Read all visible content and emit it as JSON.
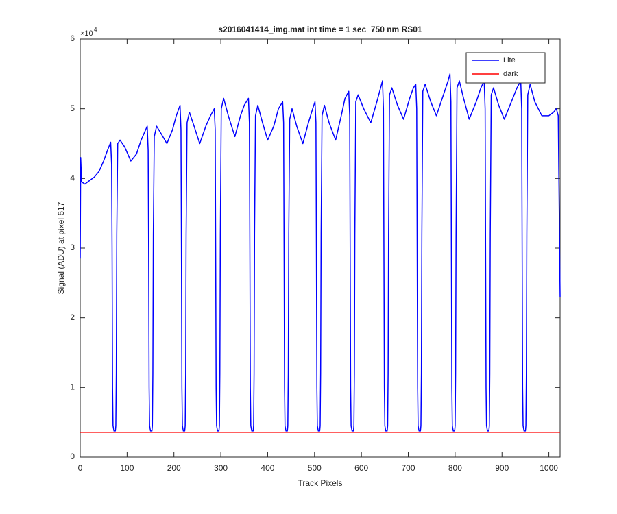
{
  "chart_data": {
    "type": "line",
    "title": "s2016041414_img.mat int time = 1 sec  750 nm RS01",
    "x_label": "Track Pixels",
    "y_label": "Signal (ADU) at pixel 617",
    "y_multiplier": "×10",
    "y_multiplier_exponent": "4",
    "xlim": [
      0,
      1024
    ],
    "xticks": [
      0,
      100,
      200,
      300,
      400,
      500,
      600,
      700,
      800,
      900,
      1000
    ],
    "ylim": [
      0,
      6
    ],
    "yticks": [
      0,
      1,
      2,
      3,
      4,
      5,
      6
    ],
    "grid": false,
    "legend": "northeast",
    "series": [
      {
        "name": "Lite",
        "color": "#0000ff",
        "x": [
          0,
          1,
          3,
          10,
          20,
          30,
          40,
          50,
          58,
          65,
          67,
          68,
          69,
          70,
          72,
          75,
          76,
          77,
          78,
          80,
          85,
          95,
          108,
          120,
          130,
          143,
          145,
          146,
          147,
          148,
          150,
          153,
          154,
          155,
          156,
          158,
          163,
          172,
          185,
          197,
          205,
          213,
          215,
          216,
          217,
          218,
          220,
          223,
          224,
          225,
          226,
          228,
          233,
          243,
          255,
          268,
          278,
          286,
          288,
          289,
          290,
          291,
          293,
          296,
          297,
          298,
          299,
          301,
          306,
          316,
          330,
          342,
          350,
          359,
          361,
          362,
          363,
          364,
          366,
          369,
          370,
          371,
          372,
          374,
          379,
          389,
          400,
          413,
          423,
          432,
          434,
          435,
          436,
          437,
          439,
          442,
          443,
          444,
          445,
          447,
          452,
          462,
          475,
          487,
          496,
          501,
          503,
          504,
          505,
          506,
          508,
          511,
          512,
          513,
          514,
          516,
          521,
          531,
          545,
          557,
          565,
          573,
          575,
          576,
          577,
          578,
          580,
          583,
          584,
          585,
          586,
          588,
          593,
          605,
          620,
          633,
          641,
          645,
          647,
          648,
          649,
          650,
          652,
          655,
          656,
          657,
          658,
          660,
          665,
          677,
          690,
          703,
          711,
          716,
          718,
          719,
          720,
          721,
          723,
          726,
          727,
          728,
          729,
          731,
          736,
          748,
          760,
          775,
          785,
          789,
          791,
          792,
          793,
          794,
          796,
          799,
          800,
          801,
          802,
          804,
          809,
          818,
          830,
          845,
          855,
          862,
          864,
          865,
          866,
          867,
          869,
          872,
          873,
          874,
          875,
          877,
          882,
          893,
          905,
          920,
          932,
          940,
          942,
          943,
          944,
          945,
          947,
          950,
          951,
          952,
          953,
          955,
          960,
          970,
          985,
          1000,
          1010,
          1016,
          1020,
          1024
        ],
        "values": [
          2.85,
          4.3,
          3.95,
          3.92,
          3.97,
          4.02,
          4.1,
          4.25,
          4.4,
          4.52,
          4.2,
          3.0,
          1.0,
          0.45,
          0.375,
          0.375,
          0.45,
          1.2,
          3.2,
          4.5,
          4.55,
          4.45,
          4.25,
          4.35,
          4.55,
          4.75,
          4.4,
          3.0,
          1.0,
          0.45,
          0.375,
          0.375,
          0.45,
          1.2,
          3.2,
          4.6,
          4.75,
          4.65,
          4.5,
          4.7,
          4.9,
          5.05,
          4.7,
          3.0,
          1.0,
          0.45,
          0.375,
          0.375,
          0.45,
          1.2,
          3.2,
          4.8,
          4.95,
          4.75,
          4.5,
          4.75,
          4.9,
          5.0,
          4.7,
          3.0,
          1.0,
          0.45,
          0.375,
          0.375,
          0.45,
          1.2,
          3.2,
          5.0,
          5.15,
          4.9,
          4.6,
          4.9,
          5.05,
          5.15,
          4.8,
          3.0,
          1.0,
          0.45,
          0.375,
          0.375,
          0.45,
          1.2,
          3.2,
          4.9,
          5.05,
          4.8,
          4.55,
          4.75,
          5.0,
          5.1,
          4.8,
          3.0,
          1.0,
          0.45,
          0.375,
          0.375,
          0.45,
          1.2,
          3.2,
          4.85,
          5.0,
          4.75,
          4.5,
          4.8,
          5.0,
          5.1,
          4.8,
          3.0,
          1.0,
          0.45,
          0.375,
          0.375,
          0.45,
          1.2,
          3.2,
          4.9,
          5.05,
          4.8,
          4.55,
          4.9,
          5.15,
          5.25,
          4.9,
          3.0,
          1.0,
          0.45,
          0.375,
          0.375,
          0.45,
          1.2,
          3.2,
          5.1,
          5.2,
          5.0,
          4.8,
          5.1,
          5.3,
          5.4,
          5.0,
          3.0,
          1.0,
          0.45,
          0.375,
          0.375,
          0.45,
          1.2,
          3.2,
          5.2,
          5.3,
          5.05,
          4.85,
          5.15,
          5.3,
          5.35,
          5.0,
          3.0,
          1.0,
          0.45,
          0.375,
          0.375,
          0.45,
          1.2,
          3.2,
          5.25,
          5.35,
          5.1,
          4.9,
          5.2,
          5.4,
          5.5,
          5.1,
          3.0,
          1.0,
          0.45,
          0.375,
          0.375,
          0.45,
          1.2,
          3.2,
          5.3,
          5.4,
          5.15,
          4.85,
          5.1,
          5.3,
          5.4,
          5.0,
          3.0,
          1.0,
          0.45,
          0.375,
          0.375,
          0.45,
          1.2,
          3.2,
          5.2,
          5.3,
          5.05,
          4.85,
          5.1,
          5.3,
          5.4,
          5.0,
          3.0,
          1.0,
          0.45,
          0.375,
          0.375,
          0.45,
          1.2,
          3.2,
          5.2,
          5.35,
          5.1,
          4.9,
          4.9,
          4.95,
          5.0,
          4.9,
          2.3
        ]
      },
      {
        "name": "dark",
        "color": "#ff0000",
        "x": [
          0,
          1024
        ],
        "values": [
          0.355,
          0.355
        ]
      }
    ]
  }
}
